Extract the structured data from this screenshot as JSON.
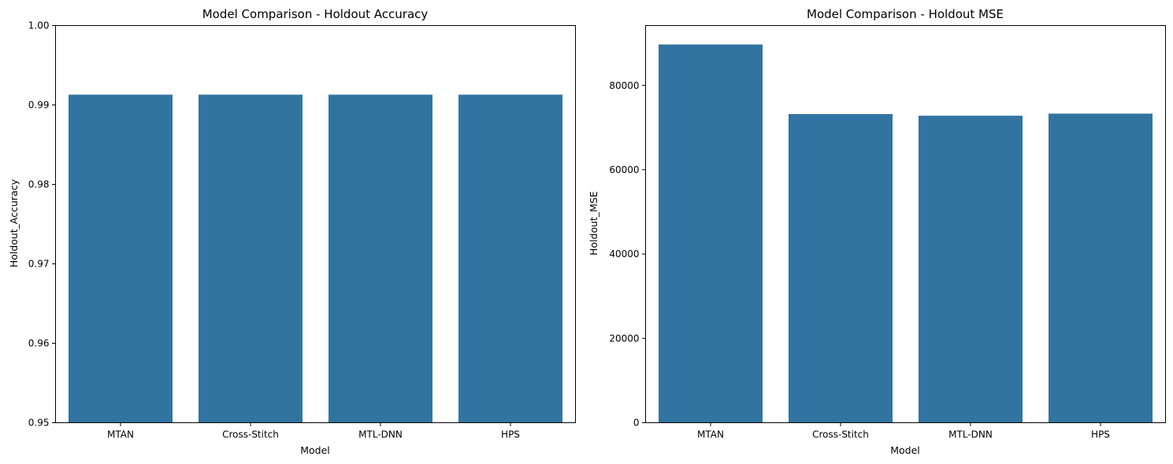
{
  "figure": {
    "bar_color": "#3274a1",
    "background": "#ffffff"
  },
  "chart_data": [
    {
      "type": "bar",
      "title": "Model Comparison - Holdout Accuracy",
      "xlabel": "Model",
      "ylabel": "Holdout_Accuracy",
      "categories": [
        "MTAN",
        "Cross-Stitch",
        "MTL-DNN",
        "HPS"
      ],
      "values": [
        0.9913,
        0.9913,
        0.9913,
        0.9913
      ],
      "ylim": [
        0.95,
        1.0
      ],
      "yticks": [
        0.95,
        0.96,
        0.97,
        0.98,
        0.99,
        1.0
      ],
      "ytick_labels": [
        "0.95",
        "0.96",
        "0.97",
        "0.98",
        "0.99",
        "1.00"
      ],
      "grid": false,
      "legend": "none"
    },
    {
      "type": "bar",
      "title": "Model Comparison - Holdout MSE",
      "xlabel": "Model",
      "ylabel": "Holdout_MSE",
      "categories": [
        "MTAN",
        "Cross-Stitch",
        "MTL-DNN",
        "HPS"
      ],
      "values": [
        89700,
        73200,
        72800,
        73300
      ],
      "ylim": [
        0,
        94185
      ],
      "yticks": [
        0,
        20000,
        40000,
        60000,
        80000
      ],
      "ytick_labels": [
        "0",
        "20000",
        "40000",
        "60000",
        "80000"
      ],
      "grid": false,
      "legend": "none"
    }
  ]
}
